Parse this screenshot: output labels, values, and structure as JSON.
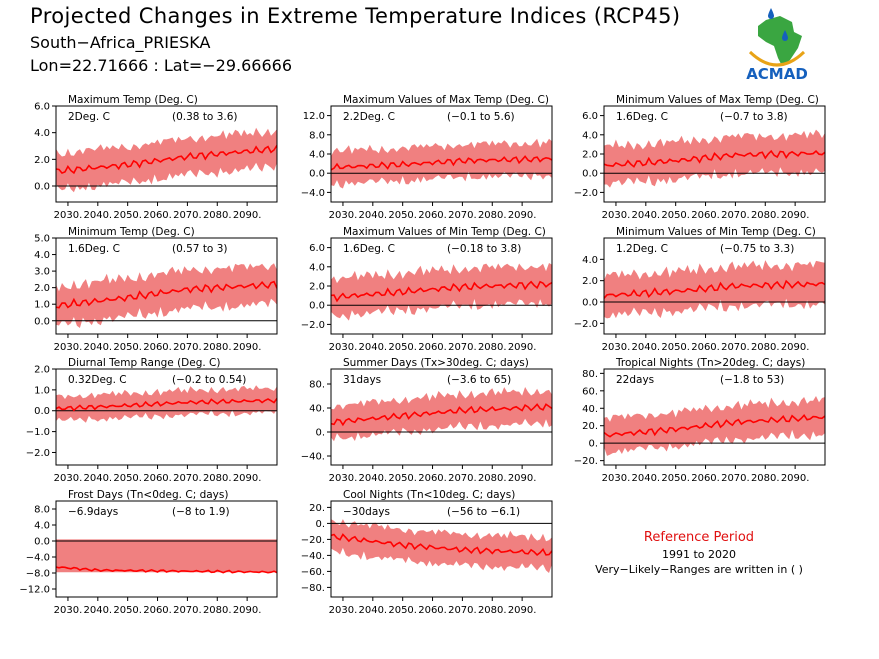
{
  "header": {
    "title": "Projected Changes in Extreme Temperature Indices (RCP45)",
    "station": "South−Africa_PRIESKA",
    "coords": "Lon=22.71666 : Lat=−29.66666"
  },
  "logo": {
    "text": "ACMAD",
    "colors": {
      "africa": "#3aa641",
      "blue": "#1560bd",
      "gold": "#e8a317"
    }
  },
  "reference": {
    "title": "Reference Period",
    "period": "1991 to 2020",
    "note": "Very−Likely−Ranges are written in ( )"
  },
  "colors": {
    "line": "#ff0000",
    "band": "#f08080",
    "zero": "#000000"
  },
  "chart_data": [
    {
      "type": "line",
      "title": "Maximum Temp (Deg. C)",
      "mean": "2Deg. C",
      "range": "(0.38 to 3.6)",
      "ylim": [
        -1.2,
        6.0
      ],
      "yticks": [
        "6.0",
        "4.0",
        "2.0",
        "0.0"
      ],
      "ytick_values": [
        6,
        4,
        2,
        0
      ],
      "xticks": [
        "2030.",
        "2040.",
        "2050.",
        "2060.",
        "2070.",
        "2080.",
        "2090."
      ],
      "xlim": [
        2026,
        2100
      ],
      "trend": [
        {
          "x": 2026,
          "y": 1.1
        },
        {
          "x": 2050,
          "y": 1.6
        },
        {
          "x": 2070,
          "y": 2.2
        },
        {
          "x": 2100,
          "y": 2.8
        }
      ],
      "halfwidth": 1.4
    },
    {
      "type": "line",
      "title": "Maximum Values of Max Temp (Deg. C)",
      "mean": "2.2Deg. C",
      "range": "(−0.1 to 5.6)",
      "ylim": [
        -6.0,
        14.0
      ],
      "yticks": [
        "12.0",
        "8.0",
        "4.0",
        "0.0",
        "−4.0"
      ],
      "ytick_values": [
        12,
        8,
        4,
        0,
        -4
      ],
      "xticks": [
        "2030.",
        "2040.",
        "2050.",
        "2060.",
        "2070.",
        "2080.",
        "2090."
      ],
      "xlim": [
        2026,
        2100
      ],
      "trend": [
        {
          "x": 2026,
          "y": 1.2
        },
        {
          "x": 2050,
          "y": 1.8
        },
        {
          "x": 2070,
          "y": 2.6
        },
        {
          "x": 2100,
          "y": 3.0
        }
      ],
      "halfwidth": 3.5
    },
    {
      "type": "line",
      "title": "Minimum Values of Max Temp (Deg. C)",
      "mean": "1.6Deg. C",
      "range": "(−0.7 to 3.8)",
      "ylim": [
        -3.0,
        7.0
      ],
      "yticks": [
        "6.0",
        "4.0",
        "2.0",
        "0.0",
        "−2.0"
      ],
      "ytick_values": [
        6,
        4,
        2,
        0,
        -2
      ],
      "xticks": [
        "2030.",
        "2040.",
        "2050.",
        "2060.",
        "2070.",
        "2080.",
        "2090."
      ],
      "xlim": [
        2026,
        2100
      ],
      "trend": [
        {
          "x": 2026,
          "y": 0.8
        },
        {
          "x": 2050,
          "y": 1.3
        },
        {
          "x": 2070,
          "y": 1.9
        },
        {
          "x": 2100,
          "y": 2.1
        }
      ],
      "halfwidth": 2.0
    },
    {
      "type": "line",
      "title": "Minimum Temp (Deg. C)",
      "mean": "1.6Deg. C",
      "range": "(0.57 to 3)",
      "ylim": [
        -0.8,
        5.0
      ],
      "yticks": [
        "5.0",
        "4.0",
        "3.0",
        "2.0",
        "1.0",
        "0.0"
      ],
      "ytick_values": [
        5,
        4,
        3,
        2,
        1,
        0
      ],
      "xticks": [
        "2030.",
        "2040.",
        "2050.",
        "2060.",
        "2070.",
        "2080.",
        "2090."
      ],
      "xlim": [
        2026,
        2100
      ],
      "trend": [
        {
          "x": 2026,
          "y": 0.9
        },
        {
          "x": 2050,
          "y": 1.4
        },
        {
          "x": 2070,
          "y": 1.9
        },
        {
          "x": 2100,
          "y": 2.2
        }
      ],
      "halfwidth": 1.2
    },
    {
      "type": "line",
      "title": "Maximum Values of Min Temp (Deg. C)",
      "mean": "1.6Deg. C",
      "range": "(−0.18 to 3.8)",
      "ylim": [
        -3.0,
        7.0
      ],
      "yticks": [
        "6.0",
        "4.0",
        "2.0",
        "0.0",
        "−2.0"
      ],
      "ytick_values": [
        6,
        4,
        2,
        0,
        -2
      ],
      "xticks": [
        "2030.",
        "2040.",
        "2050.",
        "2060.",
        "2070.",
        "2080.",
        "2090."
      ],
      "xlim": [
        2026,
        2100
      ],
      "trend": [
        {
          "x": 2026,
          "y": 0.8
        },
        {
          "x": 2050,
          "y": 1.4
        },
        {
          "x": 2070,
          "y": 1.9
        },
        {
          "x": 2100,
          "y": 2.2
        }
      ],
      "halfwidth": 2.0
    },
    {
      "type": "line",
      "title": "Minimum Values of Min Temp (Deg. C)",
      "mean": "1.2Deg. C",
      "range": "(−0.75 to 3.3)",
      "ylim": [
        -3.0,
        6.0
      ],
      "yticks": [
        "4.0",
        "2.0",
        "0.0",
        "−2.0"
      ],
      "ytick_values": [
        4,
        2,
        0,
        -2
      ],
      "xticks": [
        "2030.",
        "2040.",
        "2050.",
        "2060.",
        "2070.",
        "2080.",
        "2090."
      ],
      "xlim": [
        2026,
        2100
      ],
      "trend": [
        {
          "x": 2026,
          "y": 0.6
        },
        {
          "x": 2050,
          "y": 1.0
        },
        {
          "x": 2070,
          "y": 1.5
        },
        {
          "x": 2100,
          "y": 1.7
        }
      ],
      "halfwidth": 1.9
    },
    {
      "type": "line",
      "title": "Diurnal Temp Range (Deg. C)",
      "mean": "0.32Deg. C",
      "range": "(−0.2 to 0.54)",
      "ylim": [
        -2.6,
        2.0
      ],
      "yticks": [
        "2.0",
        "1.0",
        "0.0",
        "−1.0",
        "−2.0"
      ],
      "ytick_values": [
        2,
        1,
        0,
        -1,
        -2
      ],
      "xticks": [
        "2030.",
        "2040.",
        "2050.",
        "2060.",
        "2070.",
        "2080.",
        "2090."
      ],
      "xlim": [
        2026,
        2100
      ],
      "trend": [
        {
          "x": 2026,
          "y": 0.1
        },
        {
          "x": 2050,
          "y": 0.25
        },
        {
          "x": 2070,
          "y": 0.4
        },
        {
          "x": 2100,
          "y": 0.5
        }
      ],
      "halfwidth": 0.6
    },
    {
      "type": "line",
      "title": "Summer Days (Tx>30deg. C; days)",
      "mean": "31days",
      "range": "(−3.6 to 65)",
      "ylim": [
        -55,
        105
      ],
      "yticks": [
        "80.",
        "40.",
        "0.",
        "−40."
      ],
      "ytick_values": [
        80,
        40,
        0,
        -40
      ],
      "xticks": [
        "2030.",
        "2040.",
        "2050.",
        "2060.",
        "2070.",
        "2080.",
        "2090."
      ],
      "xlim": [
        2026,
        2100
      ],
      "trend": [
        {
          "x": 2026,
          "y": 16
        },
        {
          "x": 2050,
          "y": 27
        },
        {
          "x": 2070,
          "y": 36
        },
        {
          "x": 2100,
          "y": 42
        }
      ],
      "halfwidth": 28
    },
    {
      "type": "line",
      "title": "Tropical Nights (Tn>20deg. C; days)",
      "mean": "22days",
      "range": "(−1.8 to 53)",
      "ylim": [
        -25,
        85
      ],
      "yticks": [
        "80.",
        "60.",
        "40.",
        "20.",
        "0.",
        "−20."
      ],
      "ytick_values": [
        80,
        60,
        40,
        20,
        0,
        -20
      ],
      "xticks": [
        "2030.",
        "2040.",
        "2050.",
        "2060.",
        "2070.",
        "2080.",
        "2090."
      ],
      "xlim": [
        2026,
        2100
      ],
      "trend": [
        {
          "x": 2026,
          "y": 9
        },
        {
          "x": 2050,
          "y": 16
        },
        {
          "x": 2070,
          "y": 24
        },
        {
          "x": 2100,
          "y": 30
        }
      ],
      "halfwidth": 20
    },
    {
      "type": "line",
      "title": "Frost Days (Tn<0deg. C; days)",
      "mean": "−6.9days",
      "range": "(−8 to 1.9)",
      "ylim": [
        -14,
        10
      ],
      "yticks": [
        "8.0",
        "4.0",
        "0.0",
        "−4.0",
        "−8.0",
        "−12.0"
      ],
      "ytick_values": [
        8,
        4,
        0,
        -4,
        -8,
        -12
      ],
      "xticks": [
        "2030.",
        "2040.",
        "2050.",
        "2060.",
        "2070.",
        "2080.",
        "2090."
      ],
      "xlim": [
        2026,
        2100
      ],
      "trend": [
        {
          "x": 2026,
          "y": -6.5
        },
        {
          "x": 2040,
          "y": -7.3
        },
        {
          "x": 2100,
          "y": -7.8
        }
      ],
      "halfwidth": 0,
      "band_fixed": [
        -7.8,
        0.4
      ]
    },
    {
      "type": "line",
      "title": "Cool Nights (Tn<10deg. C; days)",
      "mean": "−30days",
      "range": "(−56 to −6.1)",
      "ylim": [
        -92,
        28
      ],
      "yticks": [
        "20.",
        "0.",
        "−20.",
        "−40.",
        "−60.",
        "−80."
      ],
      "ytick_values": [
        20,
        0,
        -20,
        -40,
        -60,
        -80
      ],
      "xticks": [
        "2030.",
        "2040.",
        "2050.",
        "2060.",
        "2070.",
        "2080.",
        "2090."
      ],
      "xlim": [
        2026,
        2100
      ],
      "trend": [
        {
          "x": 2026,
          "y": -16
        },
        {
          "x": 2050,
          "y": -27
        },
        {
          "x": 2070,
          "y": -33
        },
        {
          "x": 2100,
          "y": -37
        }
      ],
      "halfwidth": 20
    }
  ]
}
